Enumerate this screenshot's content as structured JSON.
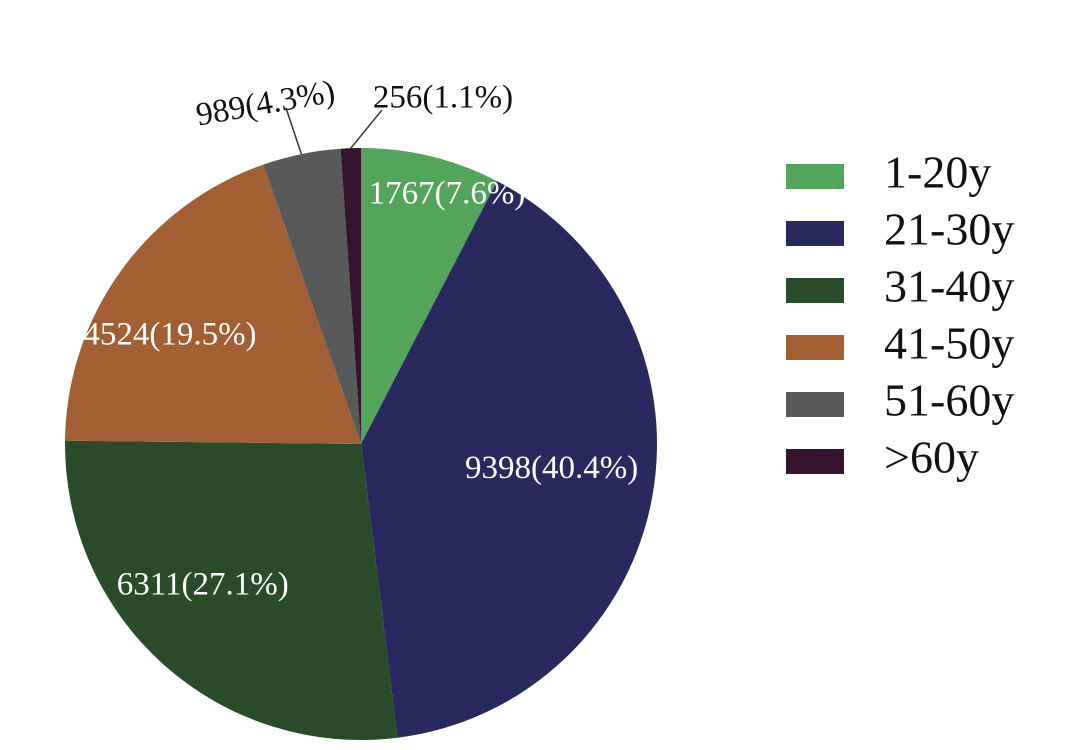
{
  "chart_data": {
    "type": "pie",
    "title": "",
    "slices": [
      {
        "category": "1-20y",
        "value": 1767,
        "label": "1767(7.6%)",
        "color": "#52A55A",
        "label_color": "#ffffff"
      },
      {
        "category": "21-30y",
        "value": 9398,
        "label": "9398(40.4%)",
        "color": "#29285F",
        "label_color": "#ffffff"
      },
      {
        "category": "31-40y",
        "value": 6311,
        "label": "6311(27.1%)",
        "color": "#294B2A",
        "label_color": "#ffffff"
      },
      {
        "category": "41-50y",
        "value": 4524,
        "label": "4524(19.5%)",
        "color": "#A15F33",
        "label_color": "#ffffff"
      },
      {
        "category": "51-60y",
        "value": 989,
        "label": "989(4.3%)",
        "color": "#585A5A",
        "label_color": "#111111"
      },
      {
        "category": ">60y",
        "value": 256,
        "label": "256(1.1%)",
        "color": "#36132F",
        "label_color": "#111111"
      }
    ],
    "start_angle": "12 o'clock",
    "direction": "clockwise",
    "legend_position": "right"
  }
}
